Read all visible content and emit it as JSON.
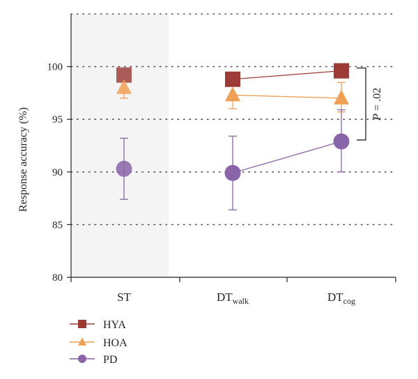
{
  "chart_data": {
    "type": "line",
    "title": "",
    "xlabel": "",
    "ylabel": "Response accuracy (%)",
    "ylim": [
      80,
      105
    ],
    "yticks": [
      80,
      85,
      90,
      95,
      100
    ],
    "grid": "dotted horizontal",
    "legend_position": "bottom-left",
    "categories": [
      {
        "base": "ST",
        "sub": ""
      },
      {
        "base": "DT",
        "sub": "walk"
      },
      {
        "base": "DT",
        "sub": "cog"
      }
    ],
    "shaded_category": "ST",
    "series": [
      {
        "name": "HYA",
        "marker": "square",
        "color": "#9c3a36",
        "values": [
          99.2,
          98.8,
          99.6
        ],
        "err_low": [
          null,
          null,
          null
        ],
        "err_high": [
          null,
          null,
          null
        ]
      },
      {
        "name": "HOA",
        "marker": "triangle",
        "color": "#f0a055",
        "values": [
          98.0,
          97.3,
          97.0
        ],
        "err_low": [
          97.0,
          96.0,
          95.7
        ],
        "err_high": [
          null,
          null,
          98.5
        ]
      },
      {
        "name": "PD",
        "marker": "circle",
        "color": "#8a64a8",
        "values": [
          90.3,
          89.9,
          92.9
        ],
        "err_low": [
          87.4,
          86.4,
          90.0
        ],
        "err_high": [
          93.2,
          93.4,
          95.9
        ]
      }
    ],
    "annotation": {
      "text_italic": "P",
      "text": " = .02",
      "between": [
        "HYA",
        "PD"
      ],
      "category": "DT_cog"
    }
  }
}
